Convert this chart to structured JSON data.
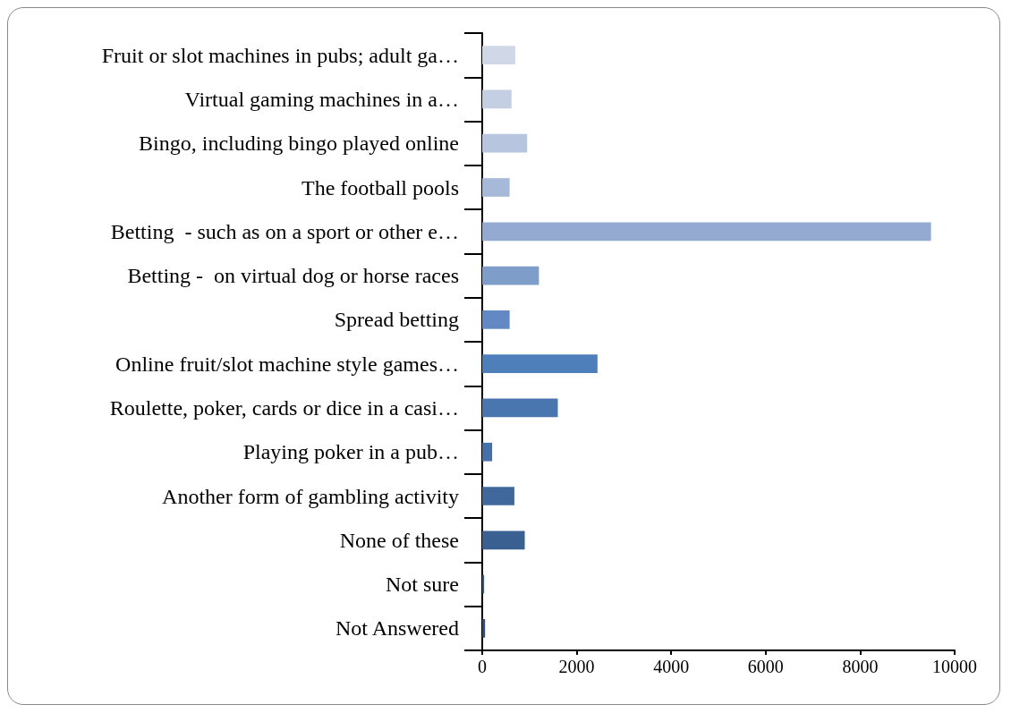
{
  "chart_data": {
    "type": "bar",
    "orientation": "horizontal",
    "categories": [
      "Fruit or slot machines in pubs; adult ga…",
      "Virtual gaming machines in a…",
      "Bingo, including bingo played online",
      "The football pools",
      "Betting  - such as on a sport or other e…",
      "Betting -  on virtual dog or horse races",
      "Spread betting",
      "Online fruit/slot machine style games…",
      "Roulette, poker, cards or dice in a casi…",
      "Playing poker in a pub…",
      "Another form of gambling activity",
      "None of these",
      "Not sure",
      "Not Answered"
    ],
    "values": [
      700,
      620,
      950,
      580,
      9500,
      1200,
      580,
      2440,
      1600,
      210,
      680,
      900,
      40,
      60
    ],
    "colors": [
      "#d0d8e8",
      "#c4cfe4",
      "#b7c5df",
      "#a7b9d9",
      "#95aad1",
      "#7f9dc9",
      "#6289c3",
      "#4f7fba",
      "#4a76b0",
      "#4670a8",
      "#41689c",
      "#3a5f91",
      "#345685",
      "#2e4d7a"
    ],
    "xlim": [
      0,
      10000
    ],
    "xticks": [
      0,
      2000,
      4000,
      6000,
      8000,
      10000
    ],
    "grid": false
  }
}
